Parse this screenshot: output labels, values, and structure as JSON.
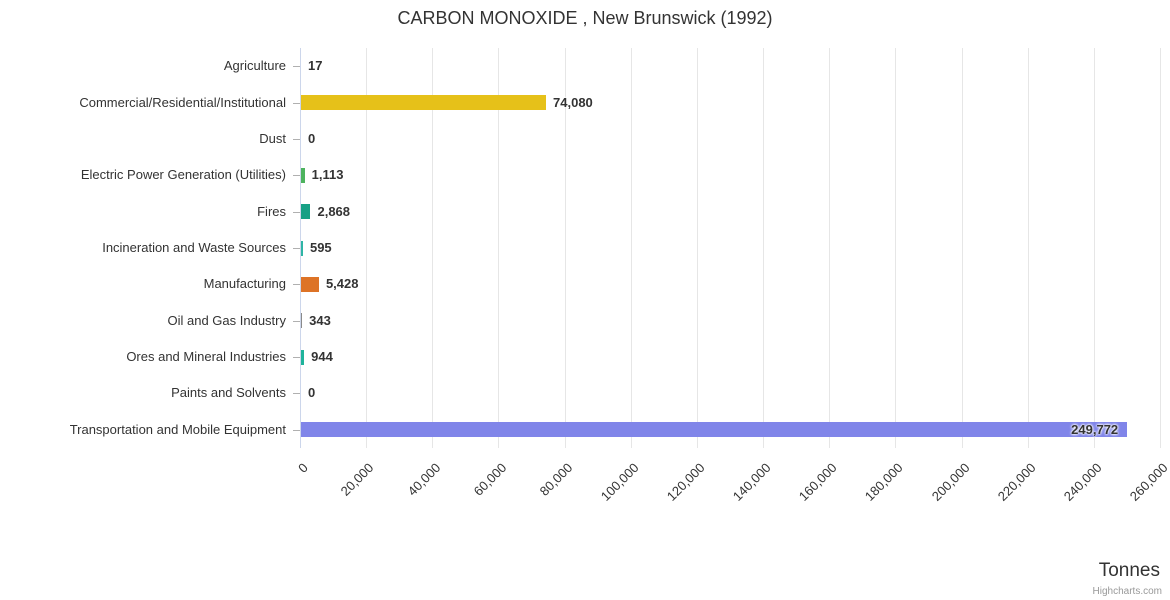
{
  "title": "CARBON MONOXIDE , New Brunswick (1992)",
  "xaxis_title": "Tonnes",
  "credit": "Highcharts.com",
  "chart_data": {
    "type": "bar",
    "orientation": "horizontal",
    "title": "CARBON MONOXIDE , New Brunswick (1992)",
    "xlabel": "Tonnes",
    "ylabel": "",
    "xlim": [
      0,
      260000
    ],
    "grid": true,
    "legend": false,
    "categories": [
      "Agriculture",
      "Commercial/Residential/Institutional",
      "Dust",
      "Electric Power Generation (Utilities)",
      "Fires",
      "Incineration and Waste Sources",
      "Manufacturing",
      "Oil and Gas Industry",
      "Ores and Mineral Industries",
      "Paints and Solvents",
      "Transportation and Mobile Equipment"
    ],
    "values": [
      17,
      74080,
      0,
      1113,
      2868,
      595,
      5428,
      343,
      944,
      0,
      249772
    ],
    "value_labels": [
      "17",
      "74,080",
      "0",
      "1,113",
      "2,868",
      "595",
      "5,428",
      "343",
      "944",
      "0",
      "249,772"
    ],
    "bar_colors": [
      "#7cb5ec",
      "#e6c119",
      "#b8b8b8",
      "#4db35e",
      "#16a085",
      "#2fb5a5",
      "#dd7326",
      "#8a8a8a",
      "#1fb39b",
      "#c8c8c8",
      "#8085e9"
    ],
    "xtick_values": [
      0,
      20000,
      40000,
      60000,
      80000,
      100000,
      120000,
      140000,
      160000,
      180000,
      200000,
      220000,
      240000,
      260000
    ],
    "xtick_labels": [
      "0",
      "20,000",
      "40,000",
      "60,000",
      "80,000",
      "100,000",
      "120,000",
      "140,000",
      "160,000",
      "180,000",
      "200,000",
      "220,000",
      "240,000",
      "260,000"
    ]
  },
  "style": {
    "grid_color": "#e6e6e6",
    "axis_line_color": "#ccd6eb",
    "tick_color": "#b0b0b0",
    "text_color": "#333333",
    "credit_color": "#999999"
  }
}
